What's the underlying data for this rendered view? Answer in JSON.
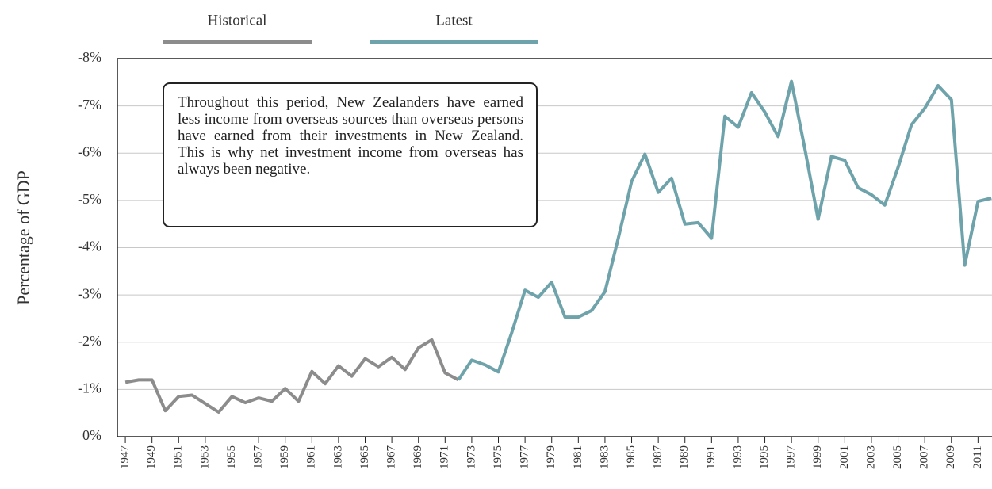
{
  "chart_data": {
    "type": "line",
    "ylabel": "Percentage of GDP",
    "annotation": "Throughout this period, New Zealanders have earned less income from overseas sources than overseas persons have earned from their investments in New Zealand. This is why net investment income from overseas has always been negative.",
    "x": [
      1947,
      1948,
      1949,
      1950,
      1951,
      1952,
      1953,
      1954,
      1955,
      1956,
      1957,
      1958,
      1959,
      1960,
      1961,
      1962,
      1963,
      1964,
      1965,
      1966,
      1967,
      1968,
      1969,
      1970,
      1971,
      1972,
      1973,
      1974,
      1975,
      1976,
      1977,
      1978,
      1979,
      1980,
      1981,
      1982,
      1983,
      1984,
      1985,
      1986,
      1987,
      1988,
      1989,
      1990,
      1991,
      1992,
      1993,
      1994,
      1995,
      1996,
      1997,
      1998,
      1999,
      2000,
      2001,
      2002,
      2003,
      2004,
      2005,
      2006,
      2007,
      2008,
      2009,
      2010,
      2011,
      2012
    ],
    "series": [
      {
        "name": "Historical",
        "color": "#8c8c8c",
        "values": [
          -1.15,
          -1.2,
          -1.2,
          -0.55,
          -0.85,
          -0.88,
          -0.7,
          -0.52,
          -0.85,
          -0.72,
          -0.82,
          -0.75,
          -1.02,
          -0.75,
          -1.38,
          -1.12,
          -1.5,
          -1.28,
          -1.65,
          -1.48,
          -1.68,
          -1.42,
          -1.88,
          -2.05,
          -1.35,
          -1.2,
          null,
          null,
          null,
          null,
          null,
          null,
          null,
          null,
          null,
          null,
          null,
          null,
          null,
          null,
          null,
          null,
          null,
          null,
          null,
          null,
          null,
          null,
          null,
          null,
          null,
          null,
          null,
          null,
          null,
          null,
          null,
          null,
          null,
          null,
          null,
          null,
          null,
          null,
          null,
          null
        ]
      },
      {
        "name": "Latest",
        "color": "#6fa3ab",
        "values": [
          null,
          null,
          null,
          null,
          null,
          null,
          null,
          null,
          null,
          null,
          null,
          null,
          null,
          null,
          null,
          null,
          null,
          null,
          null,
          null,
          null,
          null,
          null,
          null,
          null,
          -1.2,
          -1.62,
          -1.52,
          -1.37,
          -2.2,
          -3.1,
          -2.95,
          -3.27,
          -2.53,
          -2.53,
          -2.67,
          -3.07,
          -4.2,
          -5.4,
          -5.98,
          -5.17,
          -5.47,
          -4.5,
          -4.53,
          -4.2,
          -6.78,
          -6.55,
          -7.28,
          -6.87,
          -6.35,
          -7.52,
          -6.1,
          -4.6,
          -5.93,
          -5.85,
          -5.27,
          -5.12,
          -4.9,
          -5.7,
          -6.6,
          -6.95,
          -7.43,
          -7.13,
          -3.63,
          -4.98,
          -5.05
        ]
      }
    ],
    "xlim": [
      1946.4,
      2012.05
    ],
    "xticks": [
      1947,
      1949,
      1951,
      1953,
      1955,
      1957,
      1959,
      1961,
      1963,
      1965,
      1967,
      1969,
      1971,
      1973,
      1975,
      1977,
      1979,
      1981,
      1983,
      1985,
      1987,
      1989,
      1991,
      1993,
      1995,
      1997,
      1999,
      2001,
      2003,
      2005,
      2007,
      2009,
      2011
    ],
    "ylim": [
      0,
      -8
    ],
    "yticks": [
      {
        "value": 0,
        "label": "0%"
      },
      {
        "value": -1,
        "label": "-1%"
      },
      {
        "value": -2,
        "label": "-2%"
      },
      {
        "value": -3,
        "label": "-3%"
      },
      {
        "value": -4,
        "label": "-4%"
      },
      {
        "value": -5,
        "label": "-5%"
      },
      {
        "value": -6,
        "label": "-6%"
      },
      {
        "value": -7,
        "label": "-7%"
      },
      {
        "value": -8,
        "label": "-8%"
      }
    ],
    "grid": true
  }
}
